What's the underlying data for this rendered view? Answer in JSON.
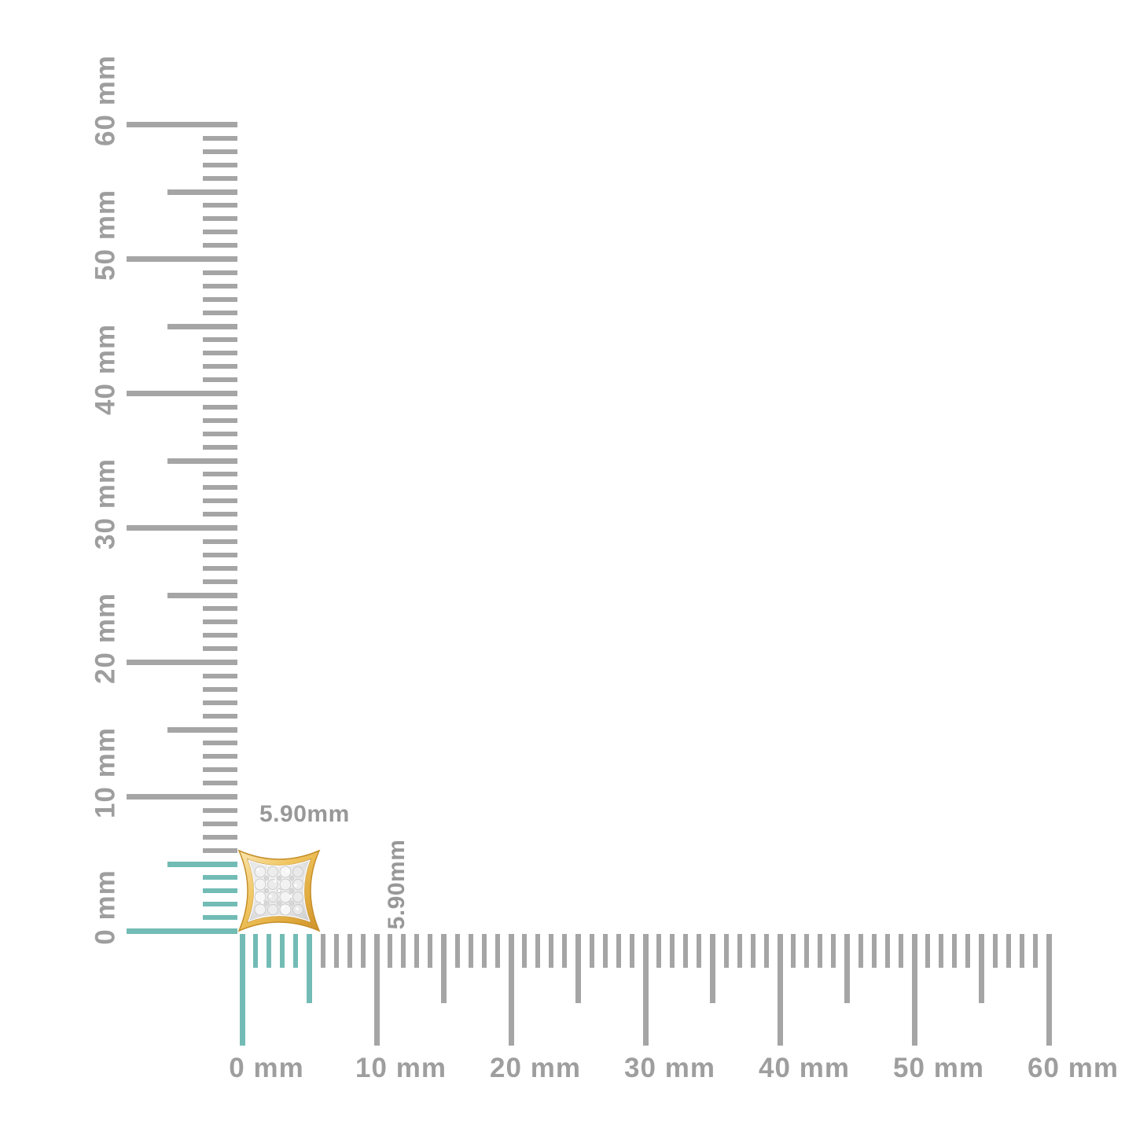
{
  "diagram": {
    "kind": "product-size-measurement",
    "background": "#FFFFFF"
  },
  "colors": {
    "tick_gray": "#A5A5A5",
    "tick_highlight_teal": "#72BCB5",
    "ruler_label_gray": "#9E9E9E",
    "dimension_label_gray": "#989898",
    "gold_light": "#F8E3AB",
    "gold_mid": "#EFC25B",
    "gold_deep": "#D0922B",
    "pave_silver": "#E4E4E4"
  },
  "vertical_ruler": {
    "unit": "mm",
    "min_mm": 0,
    "max_mm": 60,
    "minor_step_mm": 1,
    "half_step_mm": 5,
    "major_step_mm": 10,
    "major_labels": [
      "0 mm",
      "10 mm",
      "20 mm",
      "30 mm",
      "40 mm",
      "50 mm",
      "60 mm"
    ],
    "highlight_from_mm": 0,
    "highlight_to_mm": 5.9
  },
  "horizontal_ruler": {
    "unit": "mm",
    "min_mm": 0,
    "max_mm": 60,
    "minor_step_mm": 1,
    "half_step_mm": 5,
    "major_step_mm": 10,
    "major_labels": [
      "0 mm",
      "10 mm",
      "20 mm",
      "30 mm",
      "40 mm",
      "50 mm",
      "60 mm"
    ],
    "highlight_from_mm": 0,
    "highlight_to_mm": 5.9
  },
  "item": {
    "description": "gold square kite-shaped pave diamond stud earring",
    "width_mm": 5.9,
    "height_mm": 5.9,
    "width_label": "5.90mm",
    "height_label": "5.90mm"
  }
}
